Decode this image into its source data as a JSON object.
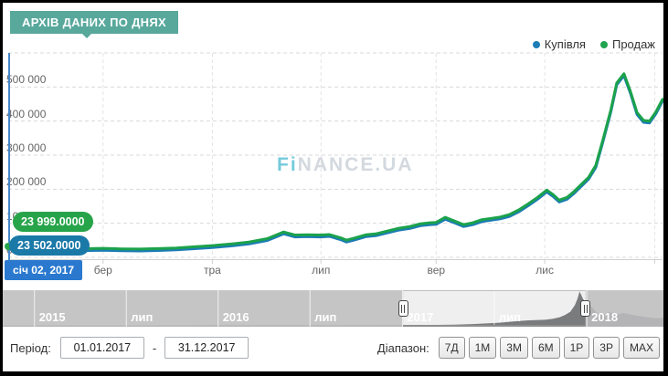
{
  "header": {
    "badge": "АРХІВ ДАНИХ ПО ДНЯХ"
  },
  "legend": [
    {
      "label": "Купівля",
      "color": "#1c7cb5"
    },
    {
      "label": "Продаж",
      "color": "#21a44f"
    }
  ],
  "tooltips": {
    "sell_value": "23 999.0000",
    "buy_value": "23 502.0000",
    "date": "січ 02, 2017"
  },
  "watermark": {
    "prefix": "Fi",
    "rest": "NANCE.UA"
  },
  "chart_data": {
    "type": "line",
    "title": "",
    "xlabel": "",
    "ylabel": "",
    "ylim": [
      0,
      600000
    ],
    "grid": "dashed",
    "legend_position": "top-right",
    "first_point": {
      "date": "січ 02, 2017",
      "kupivlya": 23502,
      "prodazh": 23999
    },
    "yticks": [
      {
        "v": 0,
        "label": "0"
      },
      {
        "v": 100000,
        "label": "100 000"
      },
      {
        "v": 200000,
        "label": "200 000"
      },
      {
        "v": 300000,
        "label": "300 000"
      },
      {
        "v": 400000,
        "label": "400 000"
      },
      {
        "v": 500000,
        "label": "500 000"
      },
      {
        "v": 600000,
        "label": ""
      }
    ],
    "xticks": [
      {
        "t": 0.145,
        "label": "бер"
      },
      {
        "t": 0.312,
        "label": "тра"
      },
      {
        "t": 0.478,
        "label": "лип"
      },
      {
        "t": 0.654,
        "label": "вер"
      },
      {
        "t": 0.82,
        "label": "лис"
      },
      {
        "t": 0.988,
        "label": ""
      }
    ],
    "series": [
      {
        "name": "Купівля",
        "color": "#1c7cb5",
        "points": [
          [
            0.0,
            23502
          ],
          [
            0.052,
            19100
          ],
          [
            0.107,
            19600
          ],
          [
            0.145,
            21000
          ],
          [
            0.173,
            19300
          ],
          [
            0.201,
            18800
          ],
          [
            0.229,
            20100
          ],
          [
            0.257,
            22200
          ],
          [
            0.285,
            25500
          ],
          [
            0.312,
            29000
          ],
          [
            0.34,
            33500
          ],
          [
            0.368,
            39500
          ],
          [
            0.396,
            49500
          ],
          [
            0.421,
            69000
          ],
          [
            0.438,
            60000
          ],
          [
            0.457,
            61000
          ],
          [
            0.477,
            60000
          ],
          [
            0.491,
            61500
          ],
          [
            0.51,
            50500
          ],
          [
            0.517,
            45000
          ],
          [
            0.53,
            51500
          ],
          [
            0.547,
            61000
          ],
          [
            0.563,
            64000
          ],
          [
            0.58,
            72000
          ],
          [
            0.597,
            80000
          ],
          [
            0.614,
            85000
          ],
          [
            0.63,
            93000
          ],
          [
            0.644,
            96000
          ],
          [
            0.654,
            97000
          ],
          [
            0.668,
            112000
          ],
          [
            0.682,
            101500
          ],
          [
            0.696,
            90500
          ],
          [
            0.71,
            96000
          ],
          [
            0.724,
            105000
          ],
          [
            0.738,
            109000
          ],
          [
            0.752,
            113000
          ],
          [
            0.766,
            120000
          ],
          [
            0.78,
            133500
          ],
          [
            0.795,
            152000
          ],
          [
            0.809,
            170500
          ],
          [
            0.823,
            192000
          ],
          [
            0.833,
            178500
          ],
          [
            0.842,
            162500
          ],
          [
            0.854,
            170500
          ],
          [
            0.865,
            188000
          ],
          [
            0.876,
            209000
          ],
          [
            0.887,
            229500
          ],
          [
            0.898,
            264500
          ],
          [
            0.909,
            339500
          ],
          [
            0.921,
            426500
          ],
          [
            0.93,
            506500
          ],
          [
            0.941,
            533500
          ],
          [
            0.951,
            481500
          ],
          [
            0.961,
            419500
          ],
          [
            0.971,
            396500
          ],
          [
            0.98,
            394500
          ],
          [
            0.99,
            421500
          ],
          [
            1.0,
            458500
          ]
        ]
      },
      {
        "name": "Продаж",
        "color": "#1ba24b",
        "points": [
          [
            0.0,
            23999
          ],
          [
            0.052,
            24600
          ],
          [
            0.107,
            25100
          ],
          [
            0.145,
            26500
          ],
          [
            0.173,
            24800
          ],
          [
            0.201,
            24300
          ],
          [
            0.229,
            25600
          ],
          [
            0.257,
            27700
          ],
          [
            0.285,
            31000
          ],
          [
            0.312,
            34500
          ],
          [
            0.34,
            39000
          ],
          [
            0.368,
            45000
          ],
          [
            0.396,
            55000
          ],
          [
            0.421,
            74500
          ],
          [
            0.438,
            65500
          ],
          [
            0.457,
            66500
          ],
          [
            0.477,
            65500
          ],
          [
            0.491,
            67000
          ],
          [
            0.51,
            56000
          ],
          [
            0.517,
            50500
          ],
          [
            0.53,
            57000
          ],
          [
            0.547,
            66500
          ],
          [
            0.563,
            69500
          ],
          [
            0.58,
            77500
          ],
          [
            0.597,
            85500
          ],
          [
            0.614,
            90500
          ],
          [
            0.63,
            98500
          ],
          [
            0.644,
            101500
          ],
          [
            0.654,
            102500
          ],
          [
            0.668,
            117500
          ],
          [
            0.682,
            107000
          ],
          [
            0.696,
            96000
          ],
          [
            0.71,
            101500
          ],
          [
            0.724,
            110500
          ],
          [
            0.738,
            114500
          ],
          [
            0.752,
            118500
          ],
          [
            0.766,
            125500
          ],
          [
            0.78,
            139000
          ],
          [
            0.795,
            157500
          ],
          [
            0.809,
            176000
          ],
          [
            0.823,
            197500
          ],
          [
            0.833,
            184000
          ],
          [
            0.842,
            168000
          ],
          [
            0.854,
            176000
          ],
          [
            0.865,
            193500
          ],
          [
            0.876,
            214500
          ],
          [
            0.887,
            235000
          ],
          [
            0.898,
            270000
          ],
          [
            0.909,
            345000
          ],
          [
            0.921,
            432000
          ],
          [
            0.93,
            512000
          ],
          [
            0.941,
            539000
          ],
          [
            0.951,
            487000
          ],
          [
            0.961,
            425000
          ],
          [
            0.971,
            402000
          ],
          [
            0.98,
            400000
          ],
          [
            0.99,
            427000
          ],
          [
            1.0,
            464000
          ]
        ]
      }
    ]
  },
  "navigator": {
    "ylim": [
      0,
      560000
    ],
    "sections": [
      {
        "t": 0.048,
        "label": "2015"
      },
      {
        "t": 0.187,
        "label": "лип"
      },
      {
        "t": 0.326,
        "label": "2016"
      },
      {
        "t": 0.465,
        "label": "лип"
      },
      {
        "t": 0.605,
        "label": "2017"
      },
      {
        "t": 0.744,
        "label": "лип"
      },
      {
        "t": 0.884,
        "label": "2018"
      }
    ],
    "selection": {
      "from": 0.606,
      "to": 0.882
    },
    "points": [
      [
        0.0,
        18000
      ],
      [
        0.082,
        19000
      ],
      [
        0.164,
        20000
      ],
      [
        0.246,
        21000
      ],
      [
        0.328,
        22000
      ],
      [
        0.41,
        22500
      ],
      [
        0.492,
        23000
      ],
      [
        0.575,
        24000
      ],
      [
        0.606,
        24500
      ],
      [
        0.643,
        27000
      ],
      [
        0.684,
        32000
      ],
      [
        0.711,
        40000
      ],
      [
        0.732,
        50000
      ],
      [
        0.752,
        62000
      ],
      [
        0.773,
        80000
      ],
      [
        0.793,
        96000
      ],
      [
        0.81,
        103000
      ],
      [
        0.821,
        107000
      ],
      [
        0.832,
        120000
      ],
      [
        0.843,
        145000
      ],
      [
        0.851,
        180000
      ],
      [
        0.859,
        230000
      ],
      [
        0.866,
        330000
      ],
      [
        0.87,
        430000
      ],
      [
        0.873,
        540000
      ],
      [
        0.876,
        480000
      ],
      [
        0.878,
        430000
      ],
      [
        0.882,
        372000
      ],
      [
        0.886,
        390000
      ],
      [
        0.89,
        320000
      ],
      [
        0.895,
        260000
      ],
      [
        0.9,
        205000
      ],
      [
        0.906,
        185000
      ],
      [
        0.911,
        196000
      ],
      [
        0.917,
        222000
      ],
      [
        0.922,
        215000
      ],
      [
        0.928,
        190000
      ],
      [
        0.934,
        200000
      ],
      [
        0.941,
        212000
      ],
      [
        0.947,
        195000
      ],
      [
        0.952,
        186000
      ],
      [
        0.958,
        172000
      ],
      [
        0.965,
        162000
      ],
      [
        0.971,
        153000
      ],
      [
        0.979,
        140000
      ],
      [
        0.986,
        133000
      ],
      [
        0.993,
        131000
      ],
      [
        1.0,
        140000
      ]
    ]
  },
  "controls": {
    "period_label": "Період:",
    "date_from": "01.01.2017",
    "separator": "-",
    "date_to": "31.12.2017",
    "range_label": "Діапазон:",
    "ranges": [
      "7Д",
      "1М",
      "3М",
      "6М",
      "1Р",
      "3Р",
      "МАХ"
    ]
  }
}
